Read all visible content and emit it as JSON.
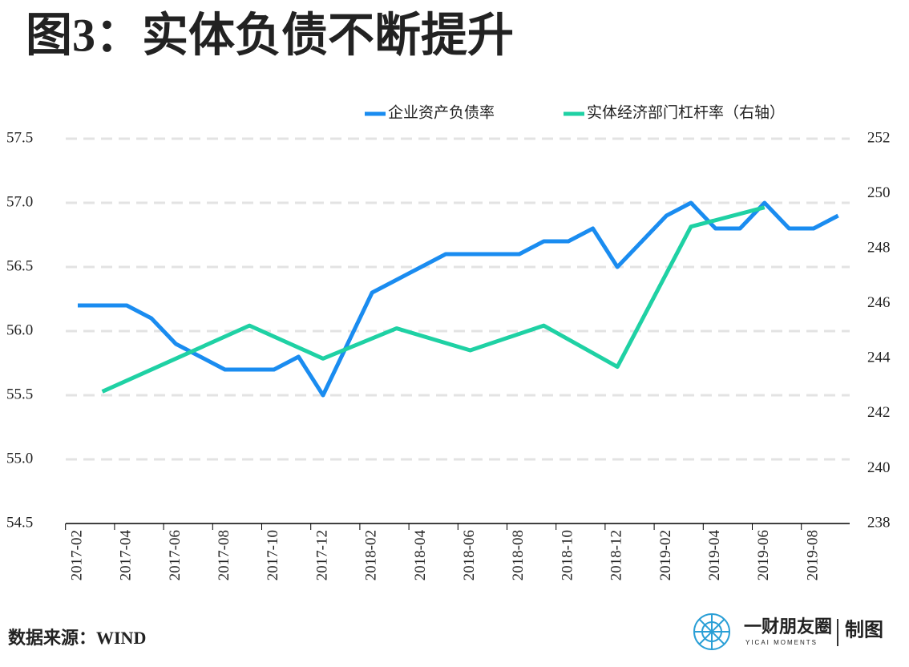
{
  "chart_data": {
    "type": "line",
    "title": "图3：实体负债不断提升",
    "source": "数据来源：WIND",
    "brand": "一财朋友圈",
    "brand_sub": "YICAI MOMENTS",
    "brand_tag": "制图",
    "categories": [
      "2017-02",
      null,
      "2017-04",
      null,
      "2017-06",
      null,
      "2017-08",
      null,
      "2017-10",
      null,
      "2017-12",
      null,
      "2018-02",
      null,
      "2018-04",
      null,
      "2018-06",
      null,
      "2018-08",
      null,
      "2018-10",
      null,
      "2018-12",
      null,
      "2019-02",
      null,
      "2019-04",
      null,
      "2019-06",
      null,
      "2019-08",
      null
    ],
    "series": [
      {
        "name": "企业资产负债率",
        "color": "#1a8cf0",
        "values": [
          56.2,
          56.2,
          56.2,
          56.1,
          55.9,
          55.8,
          55.7,
          55.7,
          55.7,
          55.8,
          55.5,
          55.9,
          56.3,
          56.4,
          56.5,
          56.6,
          56.6,
          56.6,
          56.6,
          56.7,
          56.7,
          56.8,
          56.5,
          56.7,
          56.9,
          57.0,
          56.8,
          56.8,
          57.0,
          56.8,
          56.8,
          56.9
        ]
      },
      {
        "name": "实体经济部门杠杆率（右轴）",
        "color": "#1fd1a4",
        "axis": "y2",
        "values": [
          null,
          242.8,
          null,
          null,
          244.0,
          null,
          null,
          245.2,
          null,
          null,
          244.0,
          null,
          null,
          245.1,
          null,
          null,
          244.3,
          null,
          null,
          245.2,
          null,
          null,
          243.7,
          null,
          null,
          248.8,
          null,
          null,
          249.5,
          null,
          null,
          null
        ]
      }
    ],
    "ylim": [
      54.5,
      57.5
    ],
    "yticks": [
      {
        "value": 54.5,
        "label": "54.5"
      },
      {
        "value": 55,
        "label": "55.0"
      },
      {
        "value": 55.5,
        "label": "55.5"
      },
      {
        "value": 56,
        "label": "56.0"
      },
      {
        "value": 56.5,
        "label": "56.5"
      },
      {
        "value": 57,
        "label": "57.0"
      },
      {
        "value": 57.5,
        "label": "57.5"
      }
    ],
    "y2lim": [
      238,
      252
    ],
    "y2ticks": [
      238,
      240,
      242,
      244,
      246,
      248,
      250,
      252
    ],
    "grid": true
  }
}
